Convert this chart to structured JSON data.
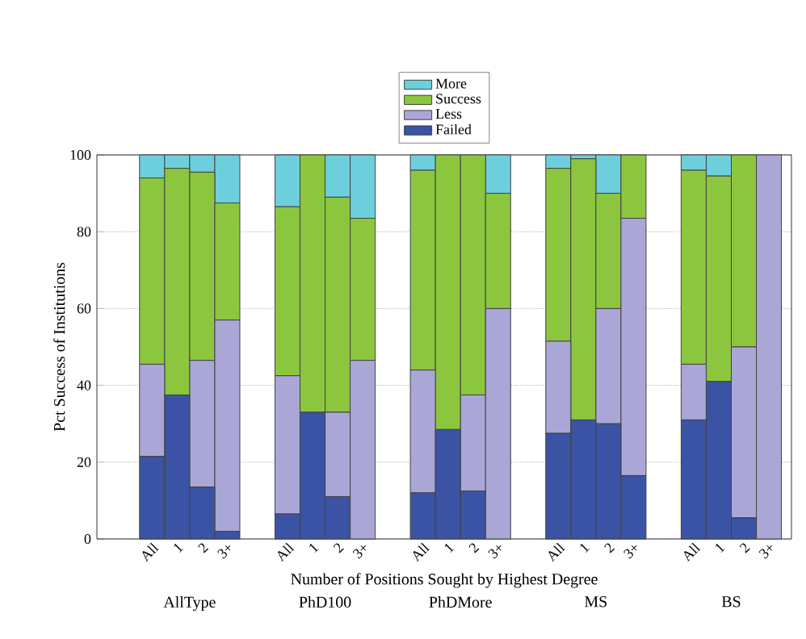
{
  "chart_data": {
    "type": "bar",
    "stacked": true,
    "xlabel": "Number of Positions Sought by Highest Degree",
    "ylabel": "Pct Success of Institutions",
    "categories": [
      "All",
      "1",
      "2",
      "3+",
      "All",
      "1",
      "2",
      "3+",
      "All",
      "1",
      "2",
      "3+",
      "All",
      "1",
      "2",
      "3+",
      "All",
      "1",
      "2",
      "3+"
    ],
    "annotations": [
      "AllType",
      "PhD100",
      "PhDMore",
      "MS",
      "BS"
    ],
    "series": [
      {
        "name": "Failed",
        "color": "#3a53a4",
        "values": [
          21.5,
          37.5,
          13.5,
          2,
          6.5,
          33,
          11,
          0,
          12,
          28.5,
          12.5,
          0,
          27.5,
          31,
          30,
          16.5,
          31,
          41,
          5.5,
          0
        ]
      },
      {
        "name": "Less",
        "color": "#aaa6d6",
        "values": [
          24,
          0,
          33,
          55,
          36,
          0,
          22,
          46.5,
          32,
          0,
          25,
          60,
          24,
          0,
          30,
          67,
          14.5,
          0,
          44.5,
          100
        ]
      },
      {
        "name": "Success",
        "color": "#8cc63f",
        "values": [
          48.5,
          59,
          49,
          30.5,
          44,
          67,
          56,
          37,
          52,
          71.5,
          62.5,
          30,
          45,
          68,
          30,
          16.5,
          50.5,
          53.5,
          50,
          0
        ]
      },
      {
        "name": "More",
        "color": "#6dcfdc",
        "values": [
          6,
          3.5,
          4.5,
          12.5,
          13.5,
          0,
          11,
          16.5,
          4,
          0,
          0,
          10,
          3.5,
          1,
          10,
          0,
          4,
          5.5,
          0,
          0
        ]
      }
    ],
    "ylim": [
      0,
      100
    ],
    "yticks": [
      0,
      20,
      40,
      60,
      80,
      100
    ],
    "grid": "y",
    "legend": "top"
  }
}
